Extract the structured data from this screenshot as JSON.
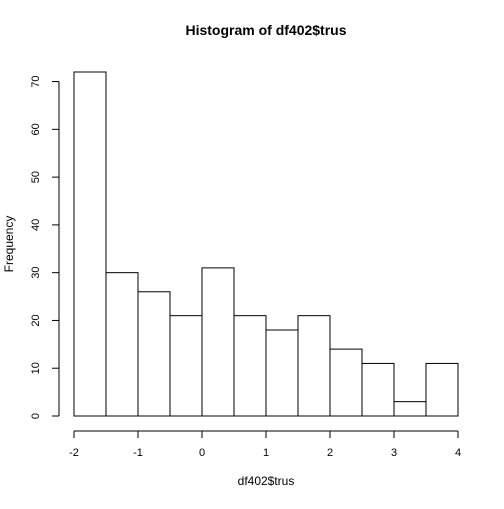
{
  "chart_data": {
    "type": "bar",
    "title": "Histogram of df402$trus",
    "xlabel": "df402$trus",
    "ylabel": "Frequency",
    "bins": [
      {
        "start": -2.0,
        "end": -1.5,
        "count": 72
      },
      {
        "start": -1.5,
        "end": -1.0,
        "count": 30
      },
      {
        "start": -1.0,
        "end": -0.5,
        "count": 26
      },
      {
        "start": -0.5,
        "end": 0.0,
        "count": 21
      },
      {
        "start": 0.0,
        "end": 0.5,
        "count": 31
      },
      {
        "start": 0.5,
        "end": 1.0,
        "count": 21
      },
      {
        "start": 1.0,
        "end": 1.5,
        "count": 18
      },
      {
        "start": 1.5,
        "end": 2.0,
        "count": 21
      },
      {
        "start": 2.0,
        "end": 2.5,
        "count": 14
      },
      {
        "start": 2.5,
        "end": 3.0,
        "count": 11
      },
      {
        "start": 3.0,
        "end": 3.5,
        "count": 3
      },
      {
        "start": 3.5,
        "end": 4.0,
        "count": 11
      }
    ],
    "xlim": [
      -2,
      4
    ],
    "ylim": [
      0,
      72
    ],
    "x_ticks": [
      "-2",
      "-1",
      "0",
      "1",
      "2",
      "3",
      "4"
    ],
    "y_ticks": [
      "0",
      "10",
      "20",
      "30",
      "40",
      "50",
      "60",
      "70"
    ],
    "grid": false,
    "bar_fill": "#ffffff",
    "bar_stroke": "#000000"
  }
}
